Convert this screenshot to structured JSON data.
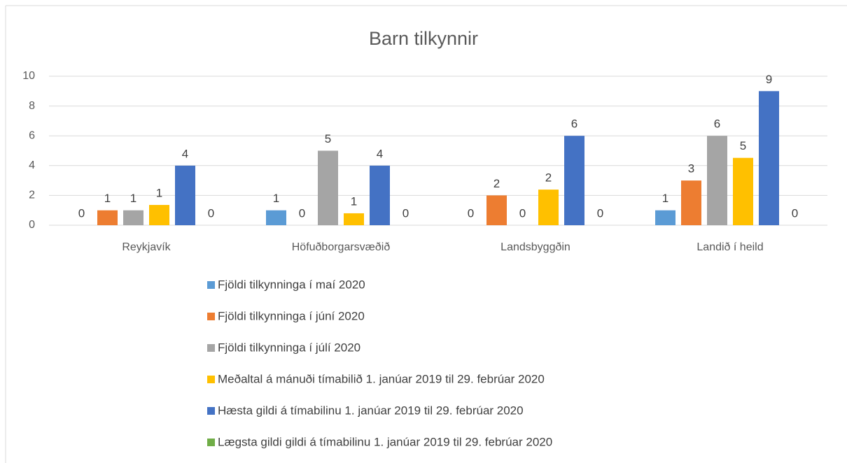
{
  "chart_data": {
    "type": "bar",
    "title": "Barn tilkynnir",
    "categories": [
      "Reykjavík",
      "Höfuðborgarsvæðið",
      "Landsbyggðin",
      "Landið í heild"
    ],
    "series": [
      {
        "name": "Fjöldi tilkynninga í maí 2020",
        "color": "#5b9bd5",
        "values": [
          0,
          1,
          0,
          1
        ]
      },
      {
        "name": "Fjöldi tilkynninga í júní 2020",
        "color": "#ed7d31",
        "values": [
          1,
          0,
          2,
          3
        ]
      },
      {
        "name": "Fjöldi tilkynninga í júlí 2020",
        "color": "#a5a5a5",
        "values": [
          1,
          5,
          0,
          6
        ]
      },
      {
        "name": "Meðaltal á mánuði tímabilið 1. janúar 2019 til 29. febrúar 2020",
        "color": "#ffc000",
        "values": [
          1.36,
          0.8,
          2.39,
          4.52
        ],
        "value_labels": [
          "1",
          "1",
          "2",
          "5"
        ]
      },
      {
        "name": "Hæsta gildi á tímabilinu 1. janúar 2019 til 29. febrúar 2020",
        "color": "#4472c4",
        "values": [
          4,
          4,
          6,
          9
        ]
      },
      {
        "name": "Lægsta gildi gildi á tímabilinu 1. janúar 2019 til 29. febrúar 2020",
        "color": "#70ad47",
        "values": [
          0,
          0,
          0,
          0
        ]
      }
    ],
    "ylim": [
      0,
      10
    ],
    "yticks": [
      0,
      2,
      4,
      6,
      8,
      10
    ],
    "grid": true,
    "legend": "bottom"
  }
}
